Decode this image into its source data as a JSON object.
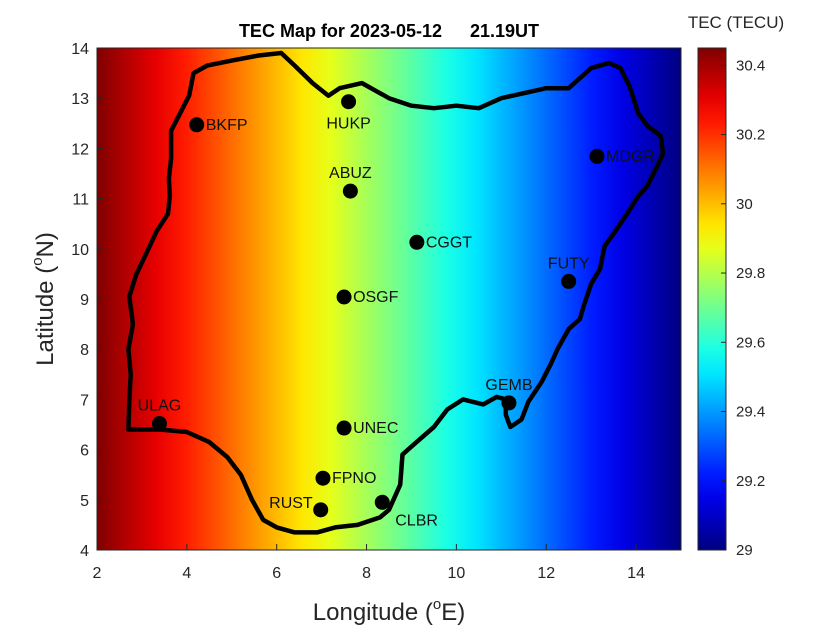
{
  "title": {
    "main": "TEC Map for 2023-05-12",
    "time": "21.19UT"
  },
  "xaxis": {
    "label_prefix": "Longitude (",
    "label_sup": "o",
    "label_suffix": "E)",
    "range": [
      2,
      15
    ],
    "ticks": [
      2,
      4,
      6,
      8,
      10,
      12,
      14
    ]
  },
  "yaxis": {
    "label_prefix": "Latitude (",
    "label_sup": "o",
    "label_suffix": "N)",
    "range": [
      4,
      14
    ],
    "ticks": [
      4,
      5,
      6,
      7,
      8,
      9,
      10,
      11,
      12,
      13,
      14
    ]
  },
  "colorbar": {
    "title": "TEC (TECU)",
    "range": [
      29,
      30.45
    ],
    "ticks": [
      29,
      29.2,
      29.4,
      29.6,
      29.8,
      30,
      30.2,
      30.4
    ],
    "tick_labels": [
      "29",
      "29.2",
      "29.4",
      "29.6",
      "29.8",
      "30",
      "30.2",
      "30.4"
    ],
    "colormap": "jet"
  },
  "tec_field": {
    "description_values": [
      {
        "lon": 2,
        "lat": 4,
        "tec": 30.45
      },
      {
        "lon": 15,
        "lat": 14,
        "tec": 29.0
      }
    ]
  },
  "stations": [
    {
      "name": "BKFP",
      "lon": 4.22,
      "lat": 12.47,
      "label_pos": "right"
    },
    {
      "name": "HUKP",
      "lon": 7.6,
      "lat": 12.93,
      "label_pos": "below"
    },
    {
      "name": "ABUZ",
      "lon": 7.64,
      "lat": 11.15,
      "label_pos": "above"
    },
    {
      "name": "MDGR",
      "lon": 13.13,
      "lat": 11.84,
      "label_pos": "right"
    },
    {
      "name": "CGGT",
      "lon": 9.12,
      "lat": 10.13,
      "label_pos": "right"
    },
    {
      "name": "FUTY",
      "lon": 12.5,
      "lat": 9.35,
      "label_pos": "above"
    },
    {
      "name": "OSGF",
      "lon": 7.5,
      "lat": 9.04,
      "label_pos": "right"
    },
    {
      "name": "GEMB",
      "lon": 11.17,
      "lat": 6.93,
      "label_pos": "above"
    },
    {
      "name": "ULAG",
      "lon": 3.39,
      "lat": 6.52,
      "label_pos": "above"
    },
    {
      "name": "UNEC",
      "lon": 7.5,
      "lat": 6.43,
      "label_pos": "right"
    },
    {
      "name": "FPNO",
      "lon": 7.03,
      "lat": 5.43,
      "label_pos": "right"
    },
    {
      "name": "RUST",
      "lon": 6.98,
      "lat": 4.8,
      "label_pos": "left"
    },
    {
      "name": "CLBR",
      "lon": 8.35,
      "lat": 4.95,
      "label_pos": "below-right"
    }
  ],
  "boundary": [
    [
      2.7,
      6.4
    ],
    [
      2.72,
      6.95
    ],
    [
      2.75,
      7.5
    ],
    [
      2.7,
      8.0
    ],
    [
      2.8,
      8.5
    ],
    [
      2.72,
      9.05
    ],
    [
      2.88,
      9.5
    ],
    [
      3.12,
      9.95
    ],
    [
      3.33,
      10.35
    ],
    [
      3.58,
      10.7
    ],
    [
      3.62,
      11.05
    ],
    [
      3.6,
      11.4
    ],
    [
      3.65,
      11.8
    ],
    [
      3.65,
      12.35
    ],
    [
      3.85,
      12.7
    ],
    [
      4.05,
      13.05
    ],
    [
      4.15,
      13.5
    ],
    [
      4.45,
      13.65
    ],
    [
      5.0,
      13.75
    ],
    [
      5.6,
      13.85
    ],
    [
      6.1,
      13.9
    ],
    [
      6.4,
      13.65
    ],
    [
      6.8,
      13.3
    ],
    [
      7.15,
      13.05
    ],
    [
      7.4,
      13.2
    ],
    [
      7.9,
      13.3
    ],
    [
      8.5,
      13.0
    ],
    [
      9.0,
      12.85
    ],
    [
      9.5,
      12.8
    ],
    [
      10.0,
      12.85
    ],
    [
      10.5,
      12.8
    ],
    [
      11.0,
      13.0
    ],
    [
      11.5,
      13.1
    ],
    [
      12.0,
      13.2
    ],
    [
      12.5,
      13.2
    ],
    [
      13.0,
      13.6
    ],
    [
      13.4,
      13.7
    ],
    [
      13.65,
      13.6
    ],
    [
      13.85,
      13.25
    ],
    [
      14.05,
      12.7
    ],
    [
      14.25,
      12.45
    ],
    [
      14.55,
      12.25
    ],
    [
      14.6,
      11.9
    ],
    [
      14.5,
      11.7
    ],
    [
      14.25,
      11.25
    ],
    [
      14.05,
      11.05
    ],
    [
      13.8,
      10.7
    ],
    [
      13.5,
      10.3
    ],
    [
      13.3,
      10.05
    ],
    [
      13.2,
      9.6
    ],
    [
      13.0,
      9.3
    ],
    [
      12.85,
      8.9
    ],
    [
      12.75,
      8.6
    ],
    [
      12.5,
      8.4
    ],
    [
      12.25,
      8.0
    ],
    [
      12.1,
      7.7
    ],
    [
      11.9,
      7.35
    ],
    [
      11.75,
      7.15
    ],
    [
      11.6,
      6.95
    ],
    [
      11.45,
      6.6
    ],
    [
      11.2,
      6.45
    ],
    [
      11.1,
      6.7
    ],
    [
      11.1,
      7.0
    ],
    [
      10.9,
      7.05
    ],
    [
      10.6,
      6.9
    ],
    [
      10.15,
      7.0
    ],
    [
      9.8,
      6.8
    ],
    [
      9.5,
      6.45
    ],
    [
      9.05,
      6.1
    ],
    [
      8.8,
      5.9
    ],
    [
      8.75,
      5.3
    ],
    [
      8.5,
      4.8
    ],
    [
      8.3,
      4.65
    ],
    [
      7.8,
      4.5
    ],
    [
      7.3,
      4.45
    ],
    [
      6.9,
      4.35
    ],
    [
      6.4,
      4.35
    ],
    [
      6.0,
      4.45
    ],
    [
      5.7,
      4.6
    ],
    [
      5.45,
      5.0
    ],
    [
      5.2,
      5.5
    ],
    [
      4.9,
      5.85
    ],
    [
      4.5,
      6.15
    ],
    [
      4.0,
      6.35
    ],
    [
      3.4,
      6.4
    ],
    [
      2.7,
      6.4
    ]
  ],
  "colors": {
    "background": "#ffffff",
    "axes_text": "#262626",
    "boundary": "#000000",
    "station_marker": "#000000"
  }
}
